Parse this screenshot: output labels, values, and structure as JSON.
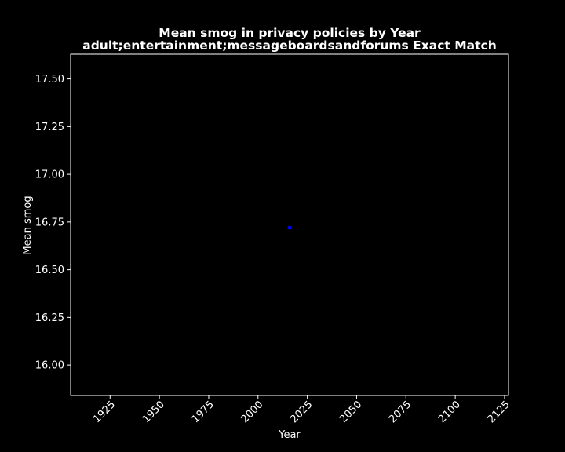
{
  "chart_data": {
    "type": "scatter",
    "title_line1": "Mean smog in privacy policies by Year",
    "title_line2": "adult;entertainment;messageboardsandforums Exact Match",
    "xlabel": "Year",
    "ylabel": "Mean smog",
    "xlim": [
      1905,
      2127
    ],
    "ylim": [
      15.84,
      17.63
    ],
    "x_ticks": [
      1925,
      1950,
      1975,
      2000,
      2025,
      2050,
      2075,
      2100,
      2125
    ],
    "x_tick_labels": [
      "1925",
      "1950",
      "1975",
      "2000",
      "2025",
      "2050",
      "2075",
      "2100",
      "2125"
    ],
    "y_ticks": [
      16.0,
      16.25,
      16.5,
      16.75,
      17.0,
      17.25,
      17.5
    ],
    "y_tick_labels": [
      "16.00",
      "16.25",
      "16.50",
      "16.75",
      "17.00",
      "17.25",
      "17.50"
    ],
    "grid": false,
    "points": [
      {
        "x": 2016,
        "y": 16.72
      }
    ],
    "colors": {
      "background": "#000000",
      "axes": "#ffffff",
      "point": "#0000ff"
    }
  }
}
